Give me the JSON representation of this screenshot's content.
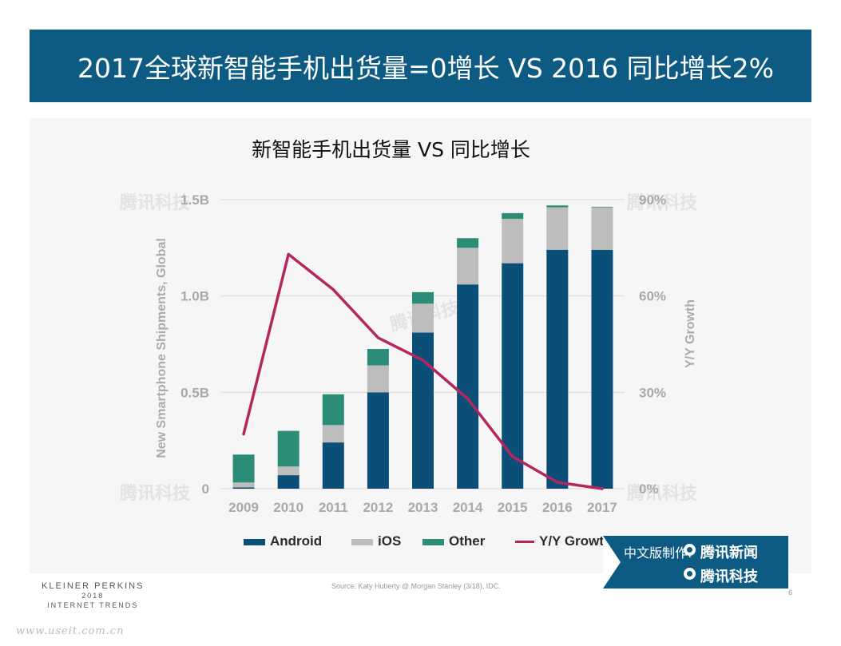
{
  "header": {
    "title": "2017全球新智能手机出货量=0增长 VS 2016 同比增长2%"
  },
  "colors": {
    "banner": "#0d5b82",
    "android": "#0b4f78",
    "ios": "#bdbdbd",
    "other": "#2b8d78",
    "growth": "#b5265e"
  },
  "chart_data": {
    "type": "bar",
    "stacked": true,
    "title": "新智能手机出货量  VS  同比增长",
    "ylabel": "New Smartphone Shipments, Global",
    "y2label": "Y/Y Growth",
    "categories": [
      "2009",
      "2010",
      "2011",
      "2012",
      "2013",
      "2014",
      "2015",
      "2016",
      "2017"
    ],
    "y_ticks": [
      "0",
      "0.5B",
      "1.0B",
      "1.5B"
    ],
    "y2_ticks": [
      "0%",
      "30%",
      "60%",
      "90%"
    ],
    "ylim": [
      0,
      1.5
    ],
    "y2lim": [
      0,
      90
    ],
    "series": [
      {
        "name": "Android",
        "values": [
          0.007,
          0.07,
          0.24,
          0.5,
          0.81,
          1.06,
          1.17,
          1.24,
          1.24
        ]
      },
      {
        "name": "iOS",
        "values": [
          0.025,
          0.045,
          0.09,
          0.14,
          0.15,
          0.19,
          0.23,
          0.22,
          0.22
        ]
      },
      {
        "name": "Other",
        "values": [
          0.145,
          0.185,
          0.16,
          0.085,
          0.06,
          0.05,
          0.03,
          0.01,
          0.003
        ]
      }
    ],
    "line_series": {
      "name": "Y/Y Growth",
      "axis": "right",
      "values": [
        17,
        73,
        62,
        47,
        40,
        28,
        10,
        2,
        0
      ]
    },
    "legend": [
      "Android",
      "iOS",
      "Other",
      "Y/Y Growth"
    ],
    "legend_position": "bottom",
    "grid": true
  },
  "footer": {
    "logo_line1": "KLEINER PERKINS",
    "logo_line2": "2018",
    "logo_line3": "INTERNET TRENDS",
    "source": "Source: Katy Huberty @ Morgan Stanley (3/18), IDC.",
    "page": "6",
    "site": "www.useit.com.cn"
  },
  "credit": {
    "label": "中文版制作:",
    "brand1": "腾讯新闻",
    "brand2": "腾讯科技"
  },
  "watermark": {
    "text": "腾讯科技"
  }
}
